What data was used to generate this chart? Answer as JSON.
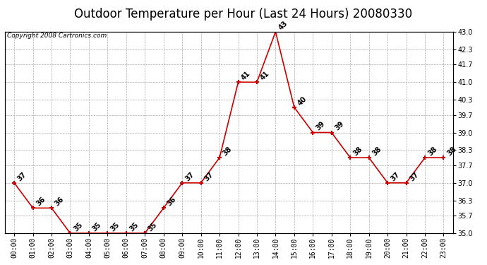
{
  "title": "Outdoor Temperature per Hour (Last 24 Hours) 20080330",
  "copyright_text": "Copyright 2008 Cartronics.com",
  "hours": [
    "00:00",
    "01:00",
    "02:00",
    "03:00",
    "04:00",
    "05:00",
    "06:00",
    "07:00",
    "08:00",
    "09:00",
    "10:00",
    "11:00",
    "12:00",
    "13:00",
    "14:00",
    "15:00",
    "16:00",
    "17:00",
    "18:00",
    "19:00",
    "20:00",
    "21:00",
    "22:00",
    "23:00"
  ],
  "temps": [
    37,
    36,
    36,
    35,
    35,
    35,
    35,
    35,
    36,
    37,
    37,
    38,
    41,
    41,
    43,
    40,
    39,
    39,
    38,
    38,
    37,
    37,
    38,
    38
  ],
  "line_color": "#cc0000",
  "marker_color": "#cc0000",
  "grid_color": "#aaaaaa",
  "bg_color": "#ffffff",
  "title_fontsize": 12,
  "copyright_fontsize": 6.5,
  "label_fontsize": 7,
  "tick_fontsize": 7,
  "ylim_min": 35.0,
  "ylim_max": 43.0,
  "yticks": [
    35.0,
    35.7,
    36.3,
    37.0,
    37.7,
    38.3,
    39.0,
    39.7,
    40.3,
    41.0,
    41.7,
    42.3,
    43.0
  ]
}
